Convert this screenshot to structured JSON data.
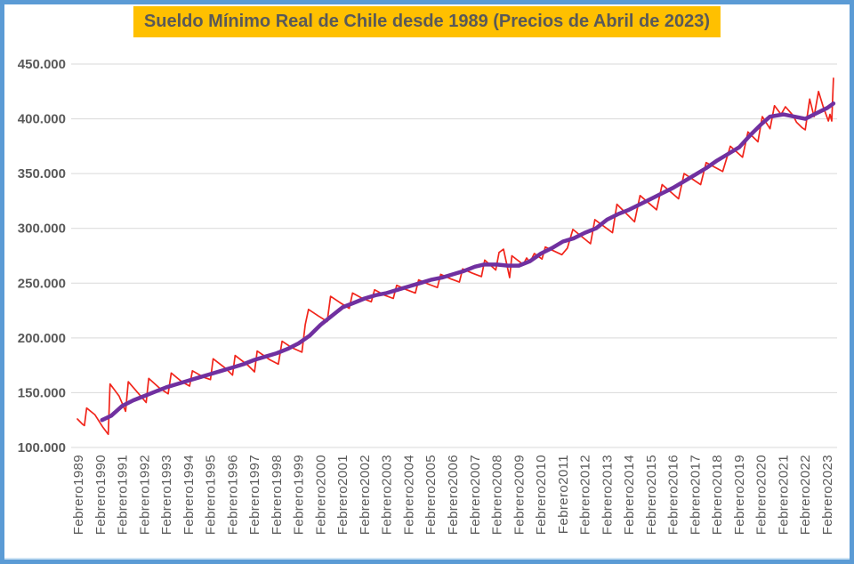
{
  "frame": {
    "border_color": "#5b9bd5",
    "background": "#ffffff",
    "title_bg": "#FFC000",
    "title_color": "#595959"
  },
  "chart_data": {
    "type": "line",
    "title": "Sueldo Mínimo Real de Chile desde 1989 (Precios de Abril de 2023)",
    "xlabel": "",
    "ylabel": "",
    "ylim": [
      100000,
      450000
    ],
    "grid": true,
    "gridline_color": "#d9d9d9",
    "tick_label_color": "#595959",
    "legend": "none",
    "y_ticks": [
      {
        "value": 100000,
        "label": "100.000"
      },
      {
        "value": 150000,
        "label": "150.000"
      },
      {
        "value": 200000,
        "label": "200.000"
      },
      {
        "value": 250000,
        "label": "250.000"
      },
      {
        "value": 300000,
        "label": "300.000"
      },
      {
        "value": 350000,
        "label": "350.000"
      },
      {
        "value": 400000,
        "label": "400.000"
      },
      {
        "value": 450000,
        "label": "450.000"
      }
    ],
    "x_tick_labels": [
      "Febrero1989",
      "Febrero1990",
      "Febrero1991",
      "Febrero1992",
      "Febrero1993",
      "Febrero1994",
      "Febrero1995",
      "Febrero1996",
      "Febrero1997",
      "Febrero1998",
      "Febrero1999",
      "Febrero2000",
      "Febrero2001",
      "Febrero2002",
      "Febrero2003",
      "Febrero2004",
      "Febrero2005",
      "Febrero2006",
      "Febrero2007",
      "Febrero2008",
      "Febrero2009",
      "Febrero2010",
      "Febrero2011",
      "Febrero2012",
      "Febrero2013",
      "Febrero2014",
      "Febrero2015",
      "Febrero2016",
      "Febrero2017",
      "Febrero2018",
      "Febrero2019",
      "Febrero2020",
      "Febrero2021",
      "Febrero2022",
      "Febrero2023"
    ],
    "x_tick_start_year": 1989,
    "series": [
      {
        "id": "sueldo-minimo-real-mensual",
        "color": "#f1251b",
        "width": 1.7,
        "points": [
          [
            1988.96,
            126000
          ],
          [
            1989.2,
            121000
          ],
          [
            1989.28,
            120000
          ],
          [
            1989.38,
            136000
          ],
          [
            1989.75,
            130000
          ],
          [
            1990.1,
            119000
          ],
          [
            1990.36,
            112000
          ],
          [
            1990.44,
            158000
          ],
          [
            1990.85,
            147000
          ],
          [
            1991.15,
            133000
          ],
          [
            1991.27,
            160000
          ],
          [
            1991.7,
            150000
          ],
          [
            1992.08,
            141000
          ],
          [
            1992.2,
            163000
          ],
          [
            1992.7,
            154000
          ],
          [
            1993.08,
            149000
          ],
          [
            1993.22,
            168000
          ],
          [
            1993.7,
            160000
          ],
          [
            1994.05,
            156000
          ],
          [
            1994.18,
            170000
          ],
          [
            1994.7,
            164000
          ],
          [
            1995.0,
            162000
          ],
          [
            1995.12,
            181000
          ],
          [
            1995.7,
            172000
          ],
          [
            1996.0,
            166000
          ],
          [
            1996.12,
            184000
          ],
          [
            1996.7,
            175000
          ],
          [
            1997.0,
            169000
          ],
          [
            1997.12,
            188000
          ],
          [
            1997.7,
            180000
          ],
          [
            1998.08,
            176000
          ],
          [
            1998.25,
            197000
          ],
          [
            1998.7,
            191000
          ],
          [
            1999.15,
            187000
          ],
          [
            1999.3,
            212000
          ],
          [
            1999.45,
            226000
          ],
          [
            1999.9,
            220000
          ],
          [
            2000.3,
            215000
          ],
          [
            2000.45,
            238000
          ],
          [
            2000.9,
            232000
          ],
          [
            2001.3,
            227000
          ],
          [
            2001.45,
            241000
          ],
          [
            2001.9,
            236000
          ],
          [
            2002.3,
            233000
          ],
          [
            2002.45,
            244000
          ],
          [
            2002.9,
            239000
          ],
          [
            2003.3,
            236000
          ],
          [
            2003.45,
            248000
          ],
          [
            2003.9,
            244000
          ],
          [
            2004.3,
            241000
          ],
          [
            2004.45,
            253000
          ],
          [
            2004.9,
            249000
          ],
          [
            2005.3,
            246000
          ],
          [
            2005.45,
            258000
          ],
          [
            2005.9,
            254000
          ],
          [
            2006.3,
            251000
          ],
          [
            2006.45,
            263000
          ],
          [
            2006.9,
            259000
          ],
          [
            2007.3,
            256000
          ],
          [
            2007.45,
            271000
          ],
          [
            2007.95,
            262000
          ],
          [
            2008.1,
            278000
          ],
          [
            2008.3,
            281000
          ],
          [
            2008.58,
            255000
          ],
          [
            2008.68,
            275000
          ],
          [
            2009.2,
            267000
          ],
          [
            2009.35,
            273000
          ],
          [
            2009.5,
            269000
          ],
          [
            2009.7,
            277000
          ],
          [
            2010.05,
            272000
          ],
          [
            2010.2,
            283000
          ],
          [
            2010.95,
            276000
          ],
          [
            2011.2,
            282000
          ],
          [
            2011.45,
            299000
          ],
          [
            2012.25,
            286000
          ],
          [
            2012.45,
            308000
          ],
          [
            2013.25,
            296000
          ],
          [
            2013.45,
            322000
          ],
          [
            2014.25,
            306000
          ],
          [
            2014.5,
            330000
          ],
          [
            2015.25,
            317000
          ],
          [
            2015.5,
            340000
          ],
          [
            2016.25,
            327000
          ],
          [
            2016.5,
            350000
          ],
          [
            2017.25,
            340000
          ],
          [
            2017.5,
            360000
          ],
          [
            2018.25,
            352000
          ],
          [
            2018.6,
            375000
          ],
          [
            2019.15,
            365000
          ],
          [
            2019.4,
            388000
          ],
          [
            2019.85,
            379000
          ],
          [
            2020.05,
            402000
          ],
          [
            2020.4,
            391000
          ],
          [
            2020.6,
            412000
          ],
          [
            2020.9,
            404000
          ],
          [
            2021.1,
            411000
          ],
          [
            2021.45,
            403000
          ],
          [
            2021.6,
            397000
          ],
          [
            2021.85,
            392000
          ],
          [
            2022.0,
            390000
          ],
          [
            2022.2,
            418000
          ],
          [
            2022.4,
            402000
          ],
          [
            2022.6,
            425000
          ],
          [
            2022.8,
            412000
          ],
          [
            2023.05,
            398000
          ],
          [
            2023.12,
            404000
          ],
          [
            2023.2,
            398000
          ],
          [
            2023.28,
            437000
          ]
        ]
      },
      {
        "id": "promedio-movil-12-meses",
        "color": "#7030A0",
        "width": 4.5,
        "points": [
          [
            1990.08,
            125000
          ],
          [
            1990.5,
            129000
          ],
          [
            1991.0,
            138000
          ],
          [
            1991.5,
            143000
          ],
          [
            1992.0,
            147000
          ],
          [
            1992.5,
            151000
          ],
          [
            1993.0,
            155000
          ],
          [
            1993.5,
            158000
          ],
          [
            1994.0,
            161000
          ],
          [
            1994.5,
            164000
          ],
          [
            1995.0,
            167000
          ],
          [
            1995.5,
            170000
          ],
          [
            1996.0,
            173000
          ],
          [
            1996.5,
            176000
          ],
          [
            1997.0,
            180000
          ],
          [
            1997.5,
            183000
          ],
          [
            1998.0,
            186000
          ],
          [
            1998.5,
            190000
          ],
          [
            1999.0,
            195000
          ],
          [
            1999.5,
            202000
          ],
          [
            2000.0,
            212000
          ],
          [
            2000.5,
            220000
          ],
          [
            2001.0,
            228000
          ],
          [
            2001.5,
            232000
          ],
          [
            2002.0,
            236000
          ],
          [
            2002.5,
            239000
          ],
          [
            2003.0,
            241000
          ],
          [
            2003.5,
            244000
          ],
          [
            2004.0,
            247000
          ],
          [
            2004.5,
            250000
          ],
          [
            2005.0,
            253000
          ],
          [
            2005.5,
            255000
          ],
          [
            2006.0,
            258000
          ],
          [
            2006.5,
            261000
          ],
          [
            2007.0,
            265000
          ],
          [
            2007.4,
            267000
          ],
          [
            2008.0,
            267000
          ],
          [
            2008.5,
            266000
          ],
          [
            2009.0,
            266000
          ],
          [
            2009.5,
            270000
          ],
          [
            2010.0,
            277000
          ],
          [
            2010.5,
            282000
          ],
          [
            2011.0,
            288000
          ],
          [
            2011.5,
            291000
          ],
          [
            2012.0,
            296000
          ],
          [
            2012.5,
            300000
          ],
          [
            2013.0,
            308000
          ],
          [
            2013.5,
            313000
          ],
          [
            2014.0,
            317000
          ],
          [
            2014.5,
            322000
          ],
          [
            2015.0,
            327000
          ],
          [
            2015.5,
            332000
          ],
          [
            2016.0,
            337000
          ],
          [
            2016.5,
            343000
          ],
          [
            2017.0,
            349000
          ],
          [
            2017.5,
            355000
          ],
          [
            2018.0,
            362000
          ],
          [
            2018.5,
            368000
          ],
          [
            2019.0,
            374000
          ],
          [
            2019.5,
            385000
          ],
          [
            2020.0,
            395000
          ],
          [
            2020.4,
            402000
          ],
          [
            2021.0,
            404000
          ],
          [
            2021.5,
            402000
          ],
          [
            2022.0,
            400000
          ],
          [
            2022.5,
            405000
          ],
          [
            2023.0,
            410000
          ],
          [
            2023.28,
            414000
          ]
        ]
      }
    ]
  }
}
